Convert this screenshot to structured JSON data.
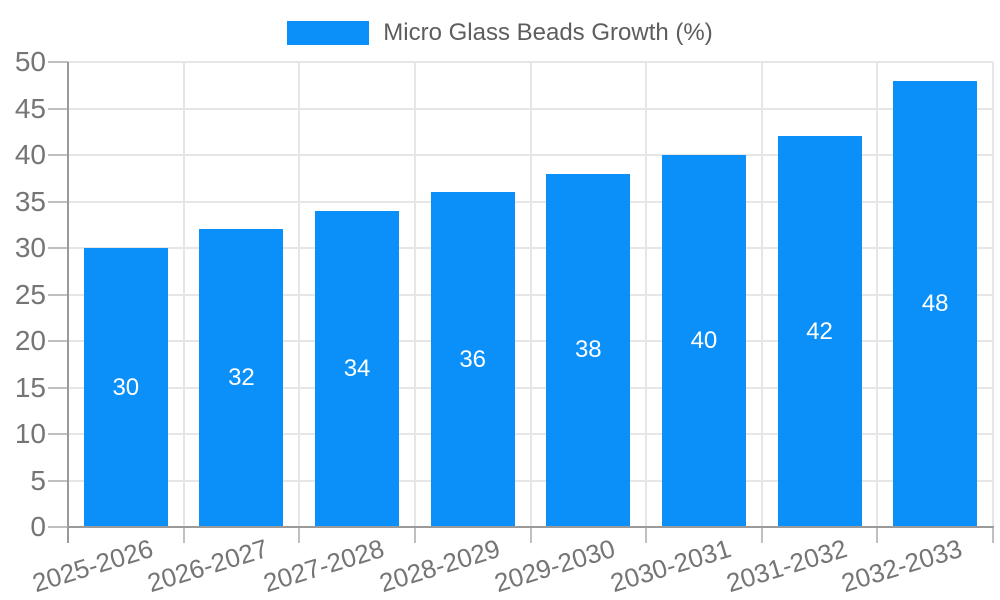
{
  "legend": {
    "label": "Micro Glass Beads Growth (%)"
  },
  "chart_data": {
    "type": "bar",
    "title": "Micro Glass Beads Growth (%)",
    "categories": [
      "2025-2026",
      "2026-2027",
      "2027-2028",
      "2028-2029",
      "2029-2030",
      "2030-2031",
      "2031-2032",
      "2032-2033"
    ],
    "values": [
      30,
      32,
      34,
      36,
      38,
      40,
      42,
      48
    ],
    "bar_labels": [
      30,
      32,
      34,
      36,
      38,
      40,
      42,
      48
    ],
    "xlabel": "",
    "ylabel": "",
    "ylim": [
      0,
      50
    ],
    "yticks": [
      0,
      5,
      10,
      15,
      20,
      25,
      30,
      35,
      40,
      45,
      50
    ],
    "grid": "both",
    "legend_position": "top-center",
    "colors": {
      "bar": "#0a90f8",
      "bar_value_text": "#ffffff",
      "gridline": "#e6e6e6",
      "axis_line": "#9a9a9a",
      "tick_mark": "#c0c0c0",
      "axis_label_text": "#757575",
      "legend_text": "#5d5d5d",
      "background": "#ffffff"
    }
  }
}
